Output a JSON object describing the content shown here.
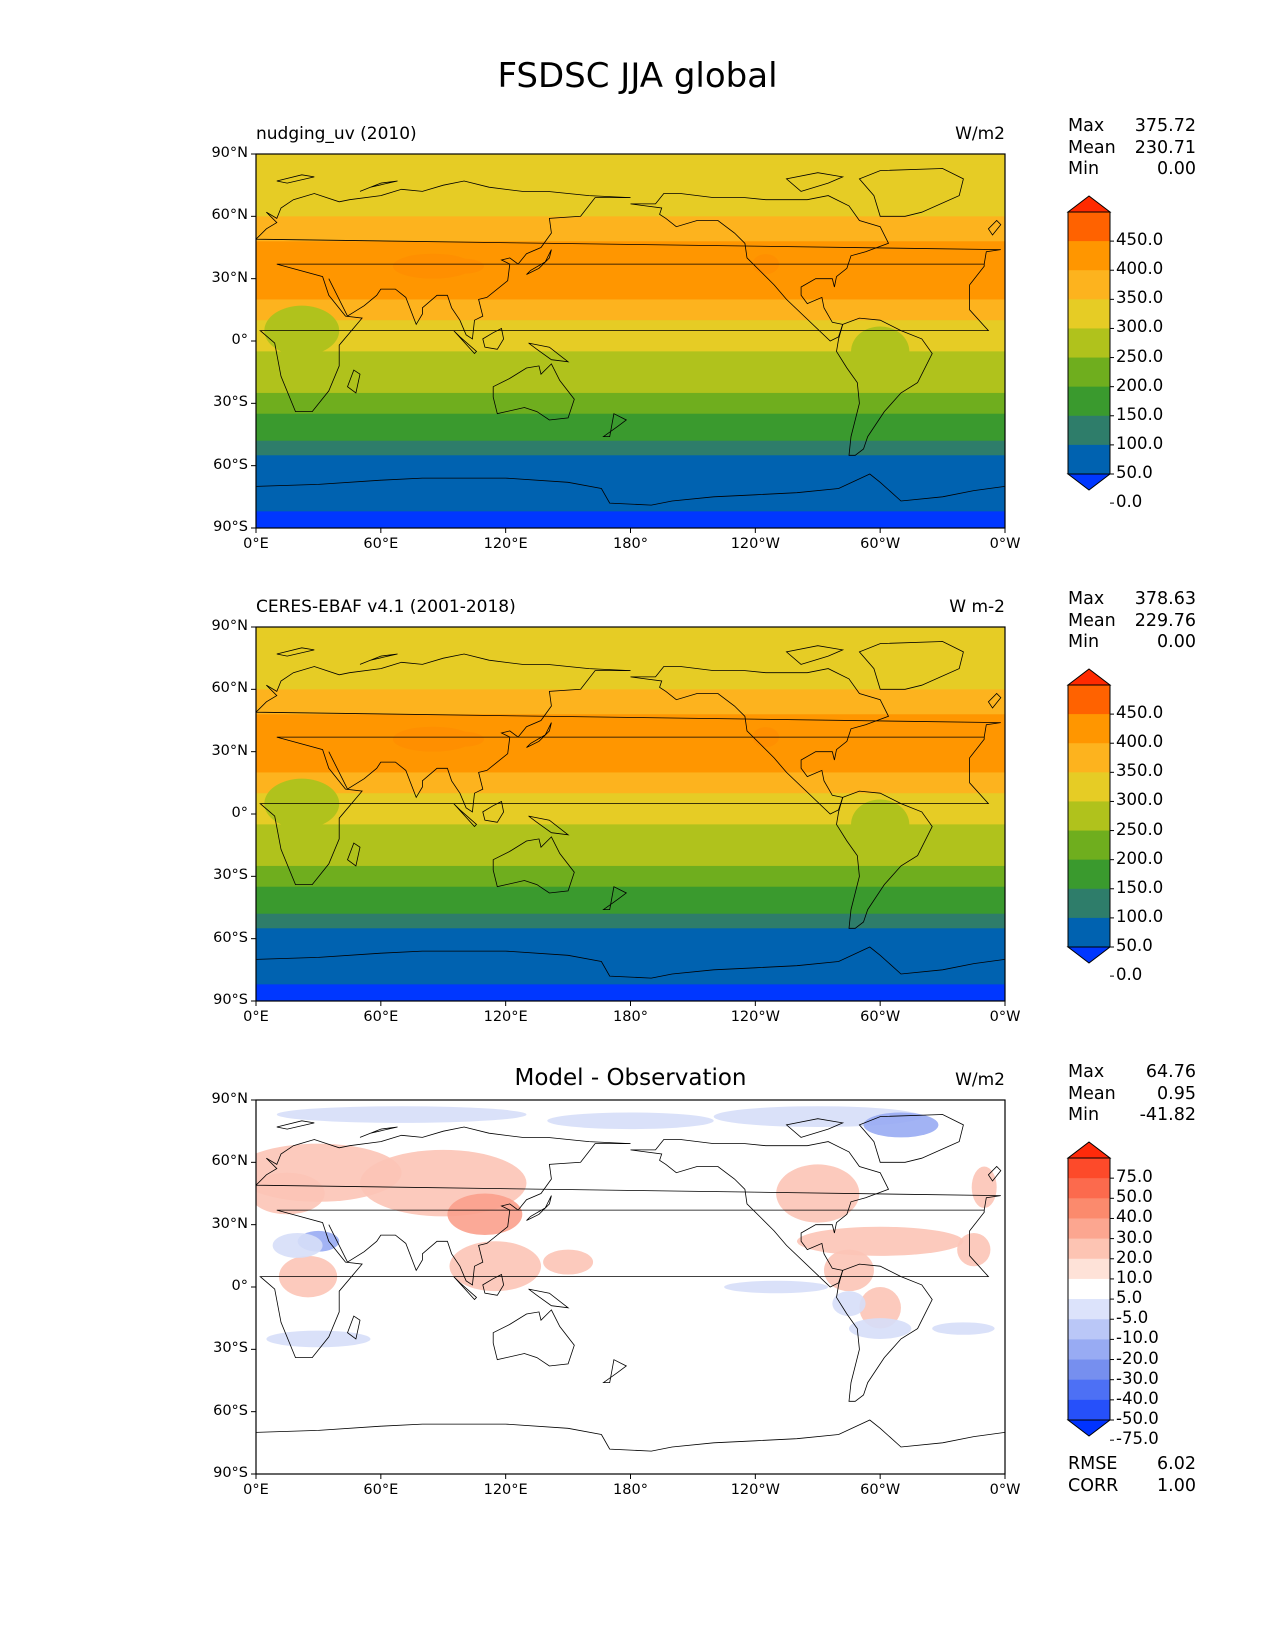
{
  "figure": {
    "title": "FSDSC JJA global"
  },
  "axes": {
    "lat_ticks": [
      "90°N",
      "60°N",
      "30°N",
      "0°",
      "30°S",
      "60°S",
      "90°S"
    ],
    "lon_ticks": [
      "0°E",
      "60°E",
      "120°E",
      "180°",
      "120°W",
      "60°W",
      "0°W"
    ]
  },
  "panels": [
    {
      "left_label": "nudging_uv (2010)",
      "center_title": "",
      "units": "W/m2",
      "stats": [
        {
          "label": "Max",
          "value": "375.72"
        },
        {
          "label": "Mean",
          "value": "230.71"
        },
        {
          "label": "Min",
          "value": "0.00"
        }
      ],
      "colorbar": {
        "labels": [
          "450.0",
          "400.0",
          "350.0",
          "300.0",
          "250.0",
          "200.0",
          "150.0",
          "100.0",
          "50.0",
          "0.0"
        ],
        "colors": [
          "#ff2a00",
          "#ff6200",
          "#ff9600",
          "#fdb31e",
          "#e6cc25",
          "#b0c21c",
          "#6fae1e",
          "#3a9a2e",
          "#2e7d6a",
          "#0062b0",
          "#0037ff"
        ]
      },
      "extra_stats": []
    },
    {
      "left_label": "CERES-EBAF v4.1 (2001-2018)",
      "center_title": "",
      "units": "W m-2",
      "stats": [
        {
          "label": "Max",
          "value": "378.63"
        },
        {
          "label": "Mean",
          "value": "229.76"
        },
        {
          "label": "Min",
          "value": "0.00"
        }
      ],
      "colorbar": {
        "labels": [
          "450.0",
          "400.0",
          "350.0",
          "300.0",
          "250.0",
          "200.0",
          "150.0",
          "100.0",
          "50.0",
          "0.0"
        ],
        "colors": [
          "#ff2a00",
          "#ff6200",
          "#ff9600",
          "#fdb31e",
          "#e6cc25",
          "#b0c21c",
          "#6fae1e",
          "#3a9a2e",
          "#2e7d6a",
          "#0062b0",
          "#0037ff"
        ]
      },
      "extra_stats": []
    },
    {
      "left_label": "",
      "center_title": "Model - Observation",
      "units": "W/m2",
      "stats": [
        {
          "label": "Max",
          "value": "64.76"
        },
        {
          "label": "Mean",
          "value": "0.95"
        },
        {
          "label": "Min",
          "value": "-41.82"
        }
      ],
      "colorbar": {
        "labels": [
          "75.0",
          "50.0",
          "40.0",
          "30.0",
          "20.0",
          "10.0",
          "5.0",
          "-5.0",
          "-10.0",
          "-20.0",
          "-30.0",
          "-40.0",
          "-50.0",
          "-75.0"
        ],
        "colors": [
          "#ff2a0a",
          "#fd4a2a",
          "#fc6a4d",
          "#fb8a6d",
          "#fca690",
          "#fdc4b3",
          "#fee2d8",
          "#ffffff",
          "#dce3fb",
          "#bac7f7",
          "#98abf3",
          "#768fef",
          "#4d70f5",
          "#2650fa",
          "#0033ff"
        ]
      },
      "extra_stats": [
        {
          "label": "RMSE",
          "value": "6.02"
        },
        {
          "label": "CORR",
          "value": "1.00"
        }
      ]
    }
  ]
}
